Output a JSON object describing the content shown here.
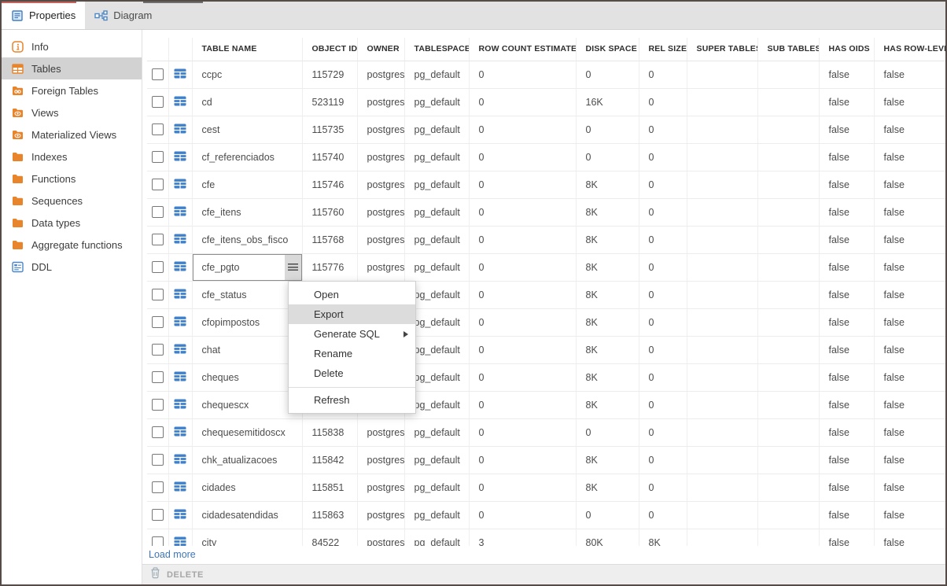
{
  "tabs": [
    {
      "label": "Properties",
      "icon": "properties-icon",
      "active": true
    },
    {
      "label": "Diagram",
      "icon": "diagram-icon",
      "active": false
    }
  ],
  "sidebar": {
    "items": [
      {
        "label": "Info",
        "icon": "info-icon",
        "active": false
      },
      {
        "label": "Tables",
        "icon": "table-icon",
        "active": true
      },
      {
        "label": "Foreign Tables",
        "icon": "folder-link-icon",
        "active": false
      },
      {
        "label": "Views",
        "icon": "folder-eye-icon",
        "active": false
      },
      {
        "label": "Materialized Views",
        "icon": "folder-eye-icon",
        "active": false
      },
      {
        "label": "Indexes",
        "icon": "folder-icon",
        "active": false
      },
      {
        "label": "Functions",
        "icon": "folder-icon",
        "active": false
      },
      {
        "label": "Sequences",
        "icon": "folder-icon",
        "active": false
      },
      {
        "label": "Data types",
        "icon": "folder-icon",
        "active": false
      },
      {
        "label": "Aggregate functions",
        "icon": "folder-icon",
        "active": false
      },
      {
        "label": "DDL",
        "icon": "ddl-icon",
        "active": false
      }
    ]
  },
  "grid": {
    "columns": [
      "TABLE NAME",
      "OBJECT ID",
      "OWNER",
      "TABLESPACE",
      "ROW COUNT ESTIMATE",
      "DISK SPACE",
      "REL SIZE",
      "SUPER TABLES",
      "SUB TABLES",
      "HAS OIDS",
      "HAS ROW-LEVEL"
    ],
    "rows": [
      {
        "cells": [
          "ccpc",
          "115729",
          "postgres",
          "pg_default",
          "0",
          "0",
          "0",
          "",
          "",
          "false",
          "false"
        ],
        "selected": false
      },
      {
        "cells": [
          "cd",
          "523119",
          "postgres",
          "pg_default",
          "0",
          "16K",
          "0",
          "",
          "",
          "false",
          "false"
        ],
        "selected": false
      },
      {
        "cells": [
          "cest",
          "115735",
          "postgres",
          "pg_default",
          "0",
          "0",
          "0",
          "",
          "",
          "false",
          "false"
        ],
        "selected": false
      },
      {
        "cells": [
          "cf_referenciados",
          "115740",
          "postgres",
          "pg_default",
          "0",
          "0",
          "0",
          "",
          "",
          "false",
          "false"
        ],
        "selected": false
      },
      {
        "cells": [
          "cfe",
          "115746",
          "postgres",
          "pg_default",
          "0",
          "8K",
          "0",
          "",
          "",
          "false",
          "false"
        ],
        "selected": false
      },
      {
        "cells": [
          "cfe_itens",
          "115760",
          "postgres",
          "pg_default",
          "0",
          "8K",
          "0",
          "",
          "",
          "false",
          "false"
        ],
        "selected": false
      },
      {
        "cells": [
          "cfe_itens_obs_fisco",
          "115768",
          "postgres",
          "pg_default",
          "0",
          "8K",
          "0",
          "",
          "",
          "false",
          "false"
        ],
        "selected": false
      },
      {
        "cells": [
          "cfe_pgto",
          "115776",
          "postgres",
          "pg_default",
          "0",
          "8K",
          "0",
          "",
          "",
          "false",
          "false"
        ],
        "selected": true
      },
      {
        "cells": [
          "cfe_status",
          "",
          "",
          "pg_default",
          "0",
          "8K",
          "0",
          "",
          "",
          "false",
          "false"
        ],
        "selected": false
      },
      {
        "cells": [
          "cfopimpostos",
          "",
          "",
          "pg_default",
          "0",
          "8K",
          "0",
          "",
          "",
          "false",
          "false"
        ],
        "selected": false
      },
      {
        "cells": [
          "chat",
          "",
          "",
          "pg_default",
          "0",
          "8K",
          "0",
          "",
          "",
          "false",
          "false"
        ],
        "selected": false
      },
      {
        "cells": [
          "cheques",
          "",
          "",
          "pg_default",
          "0",
          "8K",
          "0",
          "",
          "",
          "false",
          "false"
        ],
        "selected": false
      },
      {
        "cells": [
          "chequescx",
          "",
          "",
          "pg_default",
          "0",
          "8K",
          "0",
          "",
          "",
          "false",
          "false"
        ],
        "selected": false
      },
      {
        "cells": [
          "chequesemitidoscx",
          "115838",
          "postgres",
          "pg_default",
          "0",
          "0",
          "0",
          "",
          "",
          "false",
          "false"
        ],
        "selected": false
      },
      {
        "cells": [
          "chk_atualizacoes",
          "115842",
          "postgres",
          "pg_default",
          "0",
          "8K",
          "0",
          "",
          "",
          "false",
          "false"
        ],
        "selected": false
      },
      {
        "cells": [
          "cidades",
          "115851",
          "postgres",
          "pg_default",
          "0",
          "8K",
          "0",
          "",
          "",
          "false",
          "false"
        ],
        "selected": false
      },
      {
        "cells": [
          "cidadesatendidas",
          "115863",
          "postgres",
          "pg_default",
          "0",
          "0",
          "0",
          "",
          "",
          "false",
          "false"
        ],
        "selected": false
      },
      {
        "cells": [
          "city",
          "84522",
          "postgres",
          "pg_default",
          "3",
          "80K",
          "8K",
          "",
          "",
          "false",
          "false"
        ],
        "selected": false
      }
    ],
    "load_more_label": "Load more"
  },
  "context_menu": {
    "items": [
      {
        "label": "Open",
        "highlighted": false,
        "submenu": false
      },
      {
        "label": "Export",
        "highlighted": true,
        "submenu": false
      },
      {
        "label": "Generate SQL",
        "highlighted": false,
        "submenu": true
      },
      {
        "label": "Rename",
        "highlighted": false,
        "submenu": false
      },
      {
        "label": "Delete",
        "highlighted": false,
        "submenu": false
      },
      {
        "separator": true
      },
      {
        "label": "Refresh",
        "highlighted": false,
        "submenu": false
      }
    ]
  },
  "footer": {
    "delete_label": "DELETE"
  },
  "colors": {
    "active_tab_indicator": "#c4625d",
    "icon_blue": "#3f80c9",
    "icon_orange": "#e8842c",
    "link_blue": "#3f76b5",
    "sidebar_selected_bg": "#d2d2d2",
    "menu_highlight_bg": "#dcdcdc",
    "footer_bg": "#eeeeee"
  }
}
